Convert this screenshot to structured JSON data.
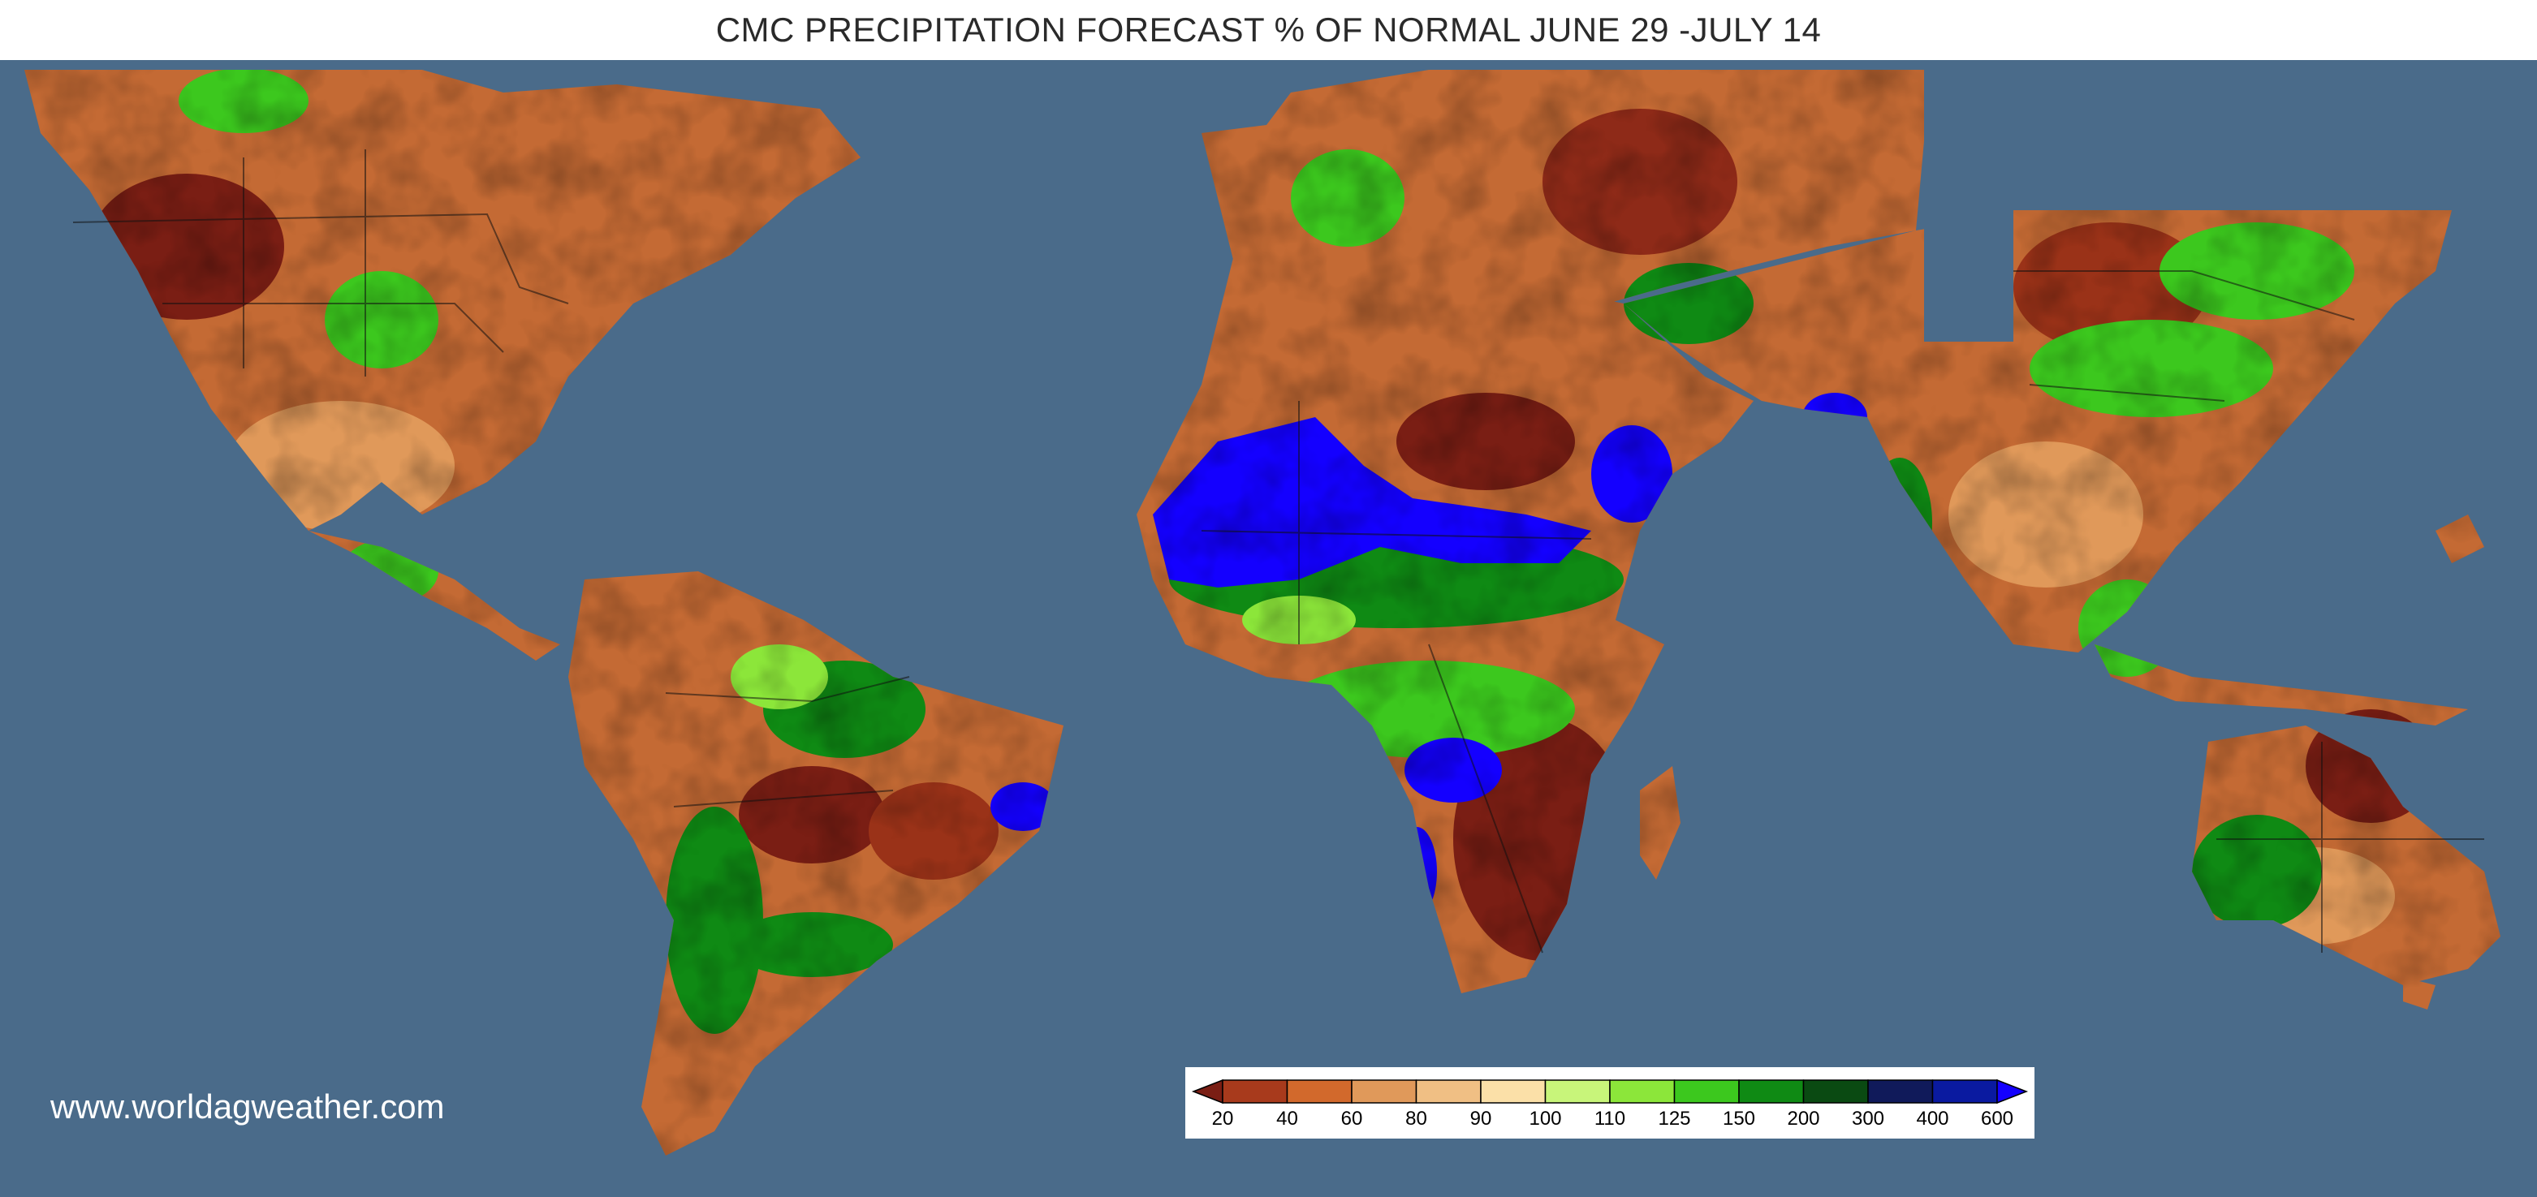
{
  "title": "CMC PRECIPITATION FORECAST % OF NORMAL JUNE 29 -JULY 14",
  "watermark": "www.worldagweather.com",
  "colors": {
    "ocean": "#4a6b8a",
    "background_title": "#ffffff"
  },
  "legend": {
    "labels": [
      "20",
      "40",
      "60",
      "80",
      "90",
      "100",
      "110",
      "125",
      "150",
      "200",
      "300",
      "400",
      "600"
    ],
    "colors": [
      "#7a1e14",
      "#a83a1c",
      "#d2692c",
      "#e0995a",
      "#f0bf84",
      "#fbe0a8",
      "#c8f57a",
      "#8ce63a",
      "#3cc81e",
      "#0f8a14",
      "#0a4a12",
      "#101a5a",
      "#0a1aa0",
      "#1400ff"
    ]
  },
  "regions": [
    {
      "name": "north-america",
      "dominant": "dry"
    },
    {
      "name": "south-america",
      "dominant": "mixed"
    },
    {
      "name": "europe",
      "dominant": "dry"
    },
    {
      "name": "africa",
      "dominant": "mixed"
    },
    {
      "name": "asia",
      "dominant": "mixed"
    },
    {
      "name": "australia",
      "dominant": "mixed"
    }
  ]
}
